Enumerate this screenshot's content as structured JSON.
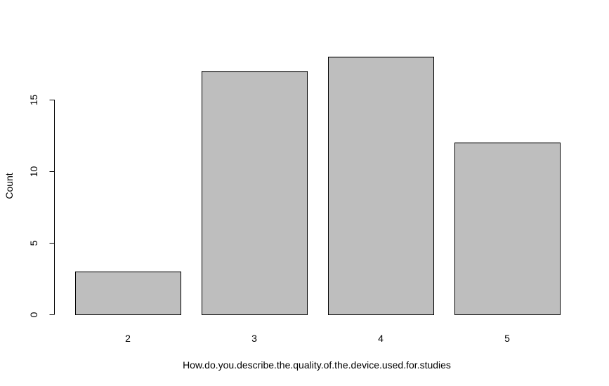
{
  "chart_data": {
    "type": "bar",
    "categories": [
      "2",
      "3",
      "4",
      "5"
    ],
    "values": [
      3,
      17,
      18,
      12
    ],
    "title": "",
    "xlabel": "How.do.you.describe.the.quality.of.the.device.used.for.studies",
    "ylabel": "Count",
    "ylim": [
      0,
      18
    ],
    "yticks": [
      0,
      5,
      10,
      15
    ],
    "grid": false,
    "colors": {
      "bar_fill": "#bebebe",
      "bar_stroke": "#000000",
      "axis": "#000000"
    }
  }
}
